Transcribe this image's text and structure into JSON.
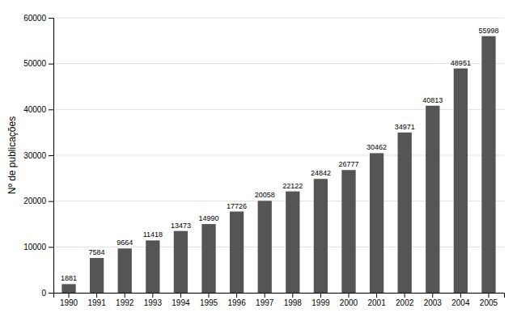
{
  "chart_data": {
    "type": "bar",
    "categories": [
      "1990",
      "1991",
      "1992",
      "1993",
      "1994",
      "1995",
      "1996",
      "1997",
      "1998",
      "1999",
      "2000",
      "2001",
      "2002",
      "2003",
      "2004",
      "2005"
    ],
    "values": [
      1881,
      7584,
      9664,
      11418,
      13473,
      14990,
      17726,
      20058,
      22122,
      24842,
      26777,
      30462,
      34971,
      40813,
      48951,
      55998
    ],
    "color": "#555555",
    "ylabel": "Nº de publicações",
    "ylim": [
      0,
      60000
    ],
    "yticks": [
      0,
      10000,
      20000,
      30000,
      40000,
      50000,
      60000
    ],
    "grid": true,
    "data_labels": true
  }
}
